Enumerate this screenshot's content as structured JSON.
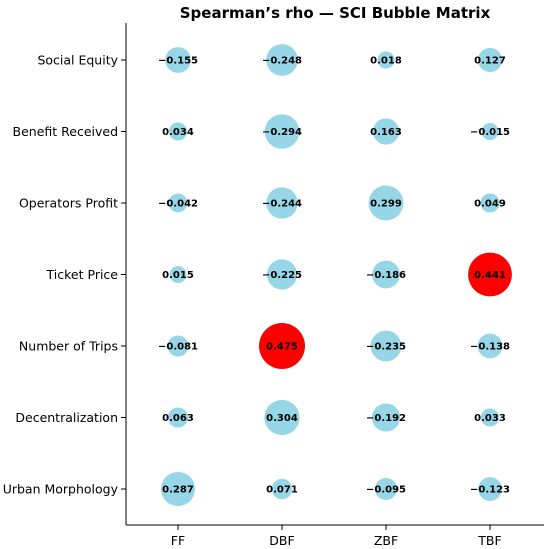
{
  "chart_data": {
    "type": "bubble-matrix",
    "title": "Spearman’s rho — SCI Bubble Matrix",
    "columns": [
      "FF",
      "DBF",
      "ZBF",
      "TBF"
    ],
    "rows": [
      "Social Equity",
      "Benefit Received",
      "Operators Profit",
      "Ticket Price",
      "Number of Trips",
      "Decentralization",
      "Urban Morphology"
    ],
    "values": [
      [
        -0.155,
        -0.248,
        0.018,
        0.127
      ],
      [
        0.034,
        -0.294,
        0.163,
        -0.015
      ],
      [
        -0.042,
        -0.244,
        0.299,
        0.049
      ],
      [
        0.015,
        -0.225,
        -0.186,
        0.441
      ],
      [
        -0.081,
        0.475,
        -0.235,
        -0.138
      ],
      [
        0.063,
        0.304,
        -0.192,
        0.033
      ],
      [
        0.287,
        0.071,
        -0.095,
        -0.123
      ]
    ],
    "labels": [
      [
        "−0.155",
        "−0.248",
        "0.018",
        "0.127"
      ],
      [
        "0.034",
        "−0.294",
        "0.163",
        "−0.015"
      ],
      [
        "−0.042",
        "−0.244",
        "0.299",
        "0.049"
      ],
      [
        "0.015",
        "−0.225",
        "−0.186",
        "0.441"
      ],
      [
        "−0.081",
        "0.475",
        "−0.235",
        "−0.138"
      ],
      [
        "0.063",
        "0.304",
        "−0.192",
        "0.033"
      ],
      [
        "0.287",
        "0.071",
        "−0.095",
        "−0.123"
      ]
    ],
    "highlight_threshold": 0.4,
    "colors": {
      "normal": "#97d6e6",
      "highlight": "#ff0000"
    },
    "grid": false
  }
}
